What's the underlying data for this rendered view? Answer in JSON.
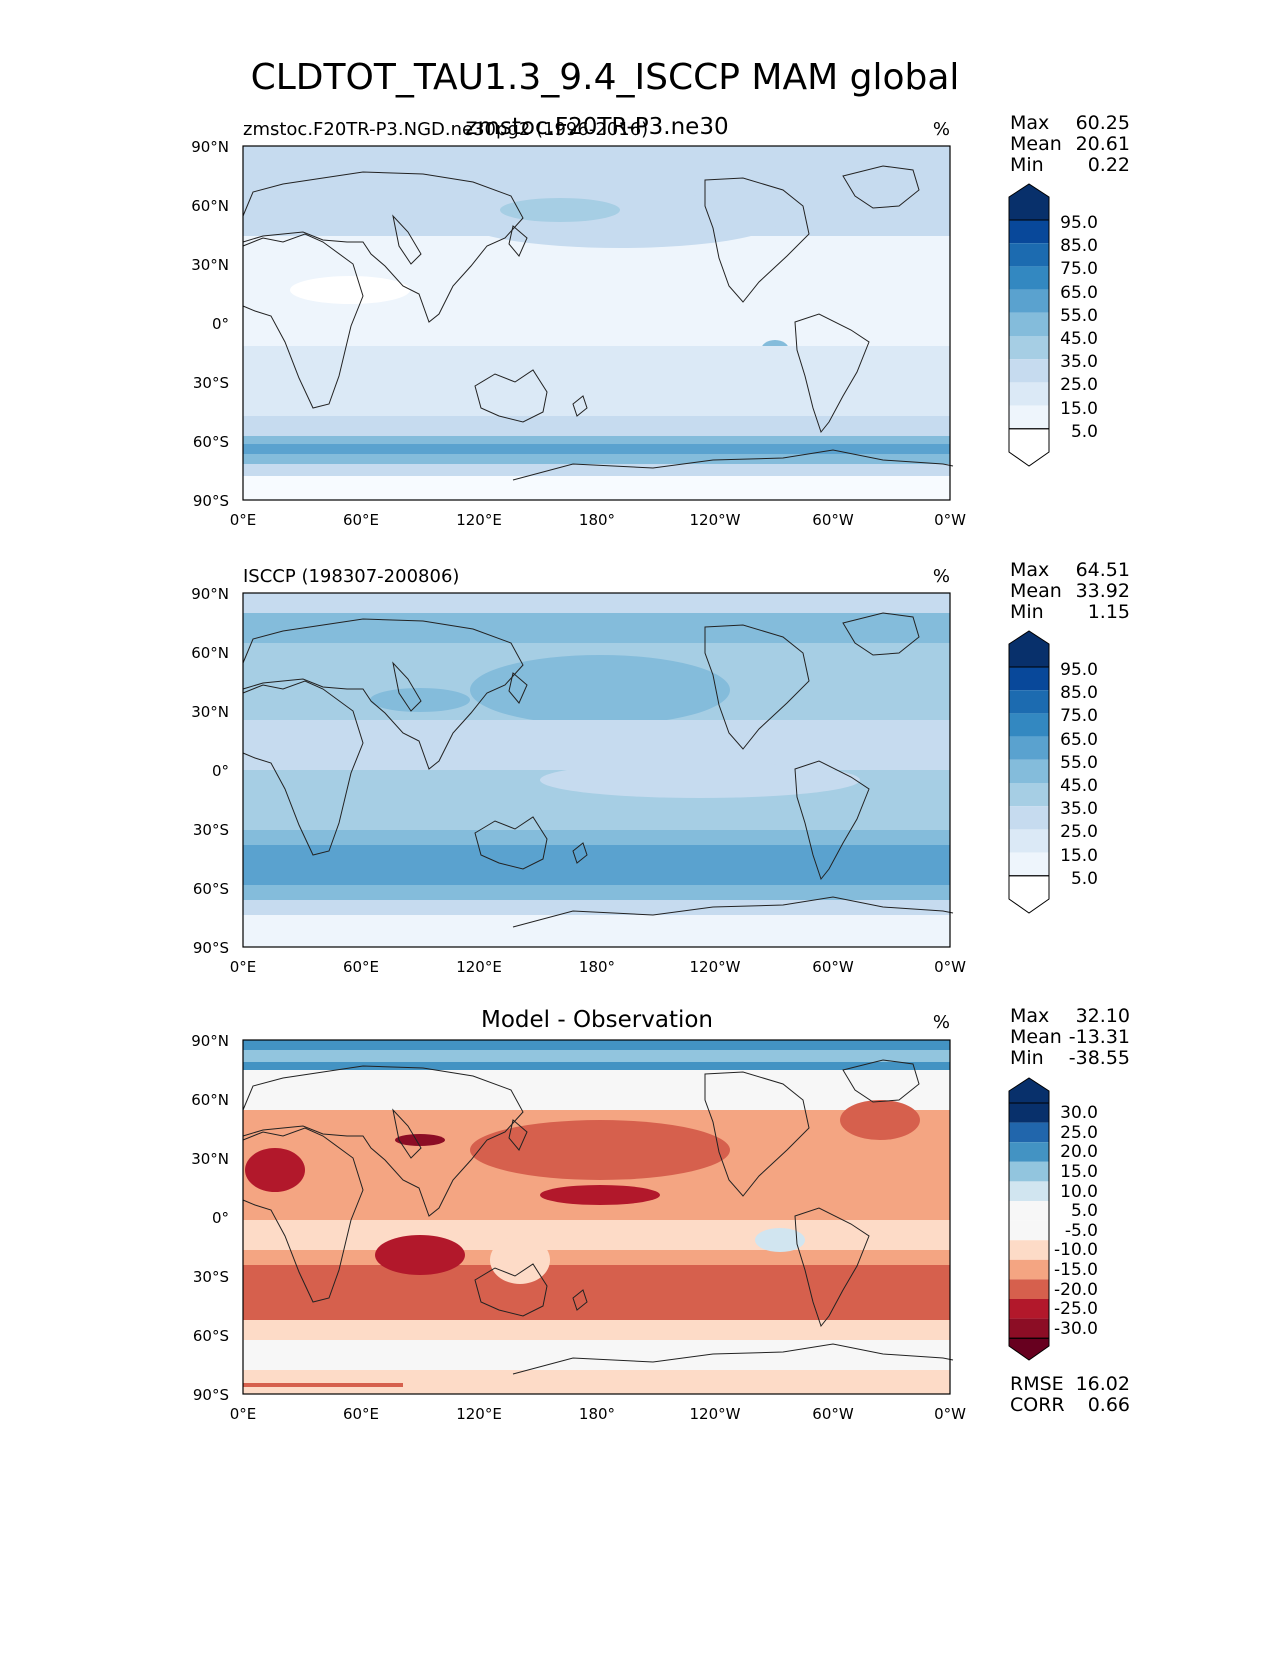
{
  "figure": {
    "title": "CLDTOT_TAU1.3_9.4_ISCCP MAM global"
  },
  "axes": {
    "lat_ticks": [
      "90°N",
      "60°N",
      "30°N",
      "0°",
      "30°S",
      "60°S",
      "90°S"
    ],
    "lon_ticks": [
      "0°E",
      "60°E",
      "120°E",
      "180°",
      "120°W",
      "60°W",
      "0°W"
    ]
  },
  "panels": [
    {
      "left_title": "zmstoc.F20TR-P3.NGD.ne30pg2 (1996-2016)",
      "center_title": "zmstoc.F20TR-P3.ne30",
      "units": "%",
      "stats": [
        {
          "label": "Max",
          "value": "60.25"
        },
        {
          "label": "Mean",
          "value": "20.61"
        },
        {
          "label": "Min",
          "value": "0.22"
        }
      ],
      "colorbar": [
        "95.0",
        "85.0",
        "75.0",
        "65.0",
        "55.0",
        "45.0",
        "35.0",
        "25.0",
        "15.0",
        "5.0"
      ],
      "colors": [
        "#08306b",
        "#08489a",
        "#1c6bb0",
        "#3388c1",
        "#5aa2cf",
        "#84bcdb",
        "#a6cee4",
        "#c6dbef",
        "#dbe9f6",
        "#eef5fc",
        "#ffffff"
      ]
    },
    {
      "left_title": "ISCCP (198307-200806)",
      "center_title": "",
      "units": "%",
      "stats": [
        {
          "label": "Max",
          "value": "64.51"
        },
        {
          "label": "Mean",
          "value": "33.92"
        },
        {
          "label": "Min",
          "value": "1.15"
        }
      ],
      "colorbar": [
        "95.0",
        "85.0",
        "75.0",
        "65.0",
        "55.0",
        "45.0",
        "35.0",
        "25.0",
        "15.0",
        "5.0"
      ],
      "colors": [
        "#08306b",
        "#08489a",
        "#1c6bb0",
        "#3388c1",
        "#5aa2cf",
        "#84bcdb",
        "#a6cee4",
        "#c6dbef",
        "#dbe9f6",
        "#eef5fc",
        "#ffffff"
      ]
    },
    {
      "left_title": "",
      "center_title": "Model - Observation",
      "units": "%",
      "stats": [
        {
          "label": "Max",
          "value": "32.10"
        },
        {
          "label": "Mean",
          "value": "-13.31"
        },
        {
          "label": "Min",
          "value": "-38.55"
        }
      ],
      "extra_stats": [
        {
          "label": "RMSE",
          "value": "16.02"
        },
        {
          "label": "CORR",
          "value": "0.66"
        }
      ],
      "colorbar": [
        "30.0",
        "25.0",
        "20.0",
        "15.0",
        "10.0",
        "5.0",
        "-5.0",
        "-10.0",
        "-15.0",
        "-20.0",
        "-25.0",
        "-30.0"
      ],
      "colors": [
        "#08306b",
        "#2166ac",
        "#4393c3",
        "#92c5de",
        "#d1e5f0",
        "#f7f7f7",
        "#f7f7f7",
        "#fddbc7",
        "#f4a582",
        "#d6604d",
        "#b2182b",
        "#8c0d25",
        "#67001f"
      ]
    }
  ]
}
